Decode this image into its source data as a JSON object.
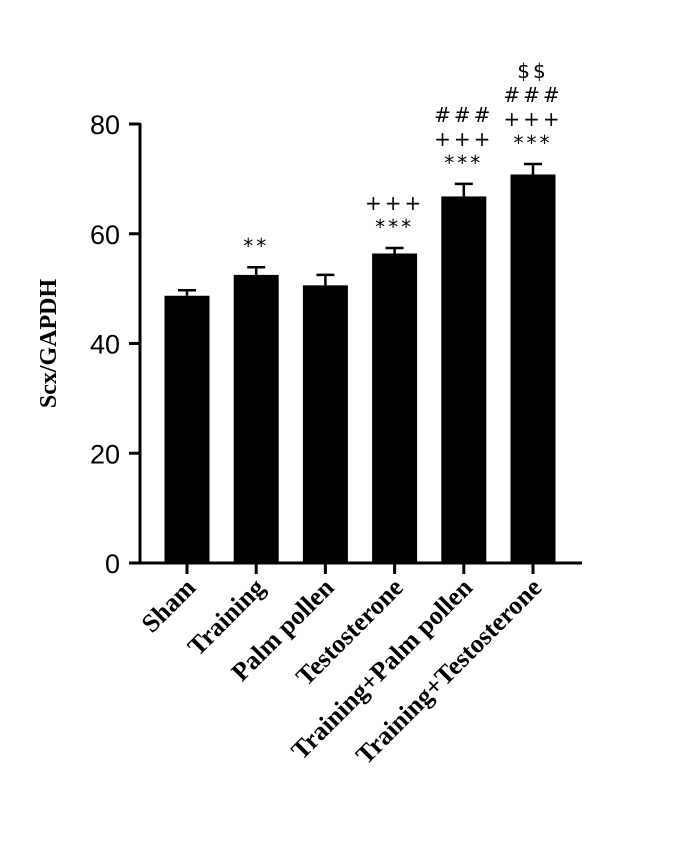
{
  "chart_data": {
    "type": "bar",
    "title": "",
    "xlabel": "",
    "ylabel": "Scx/GAPDH",
    "ylim": [
      0,
      80
    ],
    "yticks": [
      0,
      20,
      40,
      60,
      80
    ],
    "grid": false,
    "legend": "none",
    "bar_color": "#000000",
    "categories": [
      "Sham",
      "Training",
      "Palm pollen",
      "Testosterone",
      "Training+Palm pollen",
      "Training+Testosterone"
    ],
    "values": [
      48.7,
      52.5,
      50.6,
      56.4,
      66.8,
      70.8
    ],
    "errors": [
      1.0,
      1.4,
      1.9,
      1.0,
      2.3,
      1.9
    ],
    "annotations": [
      [],
      [
        "**"
      ],
      [],
      [
        "***",
        "+++"
      ],
      [
        "***",
        "+++",
        "###"
      ],
      [
        "***",
        "+++",
        "###",
        "$$"
      ]
    ]
  }
}
